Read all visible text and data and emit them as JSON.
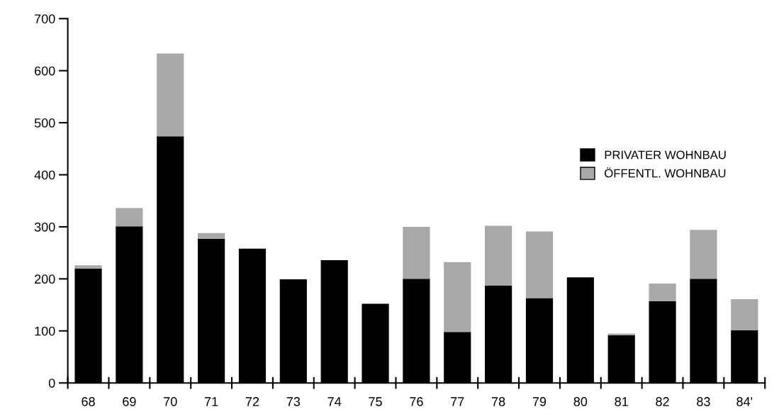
{
  "chart_data": {
    "type": "bar",
    "stacked": true,
    "categories": [
      "68",
      "69",
      "70",
      "71",
      "72",
      "73",
      "74",
      "75",
      "76",
      "77",
      "78",
      "79",
      "80",
      "81",
      "82",
      "83",
      "84'"
    ],
    "series": [
      {
        "name": "PRIVATER WOHNBAU",
        "color": "#000000",
        "values": [
          220,
          301,
          474,
          277,
          258,
          199,
          236,
          152,
          200,
          98,
          187,
          163,
          203,
          92,
          157,
          200,
          101
        ]
      },
      {
        "name": "ÖFFENTL. WOHNBAU",
        "color": "#a8a8a8",
        "values": [
          6,
          35,
          159,
          11,
          0,
          0,
          0,
          0,
          100,
          134,
          115,
          128,
          0,
          3,
          34,
          94,
          60
        ]
      }
    ],
    "ylim": [
      0,
      700
    ],
    "yticks": [
      0,
      100,
      200,
      300,
      400,
      500,
      600,
      700
    ],
    "grid": false,
    "legend": "right"
  }
}
